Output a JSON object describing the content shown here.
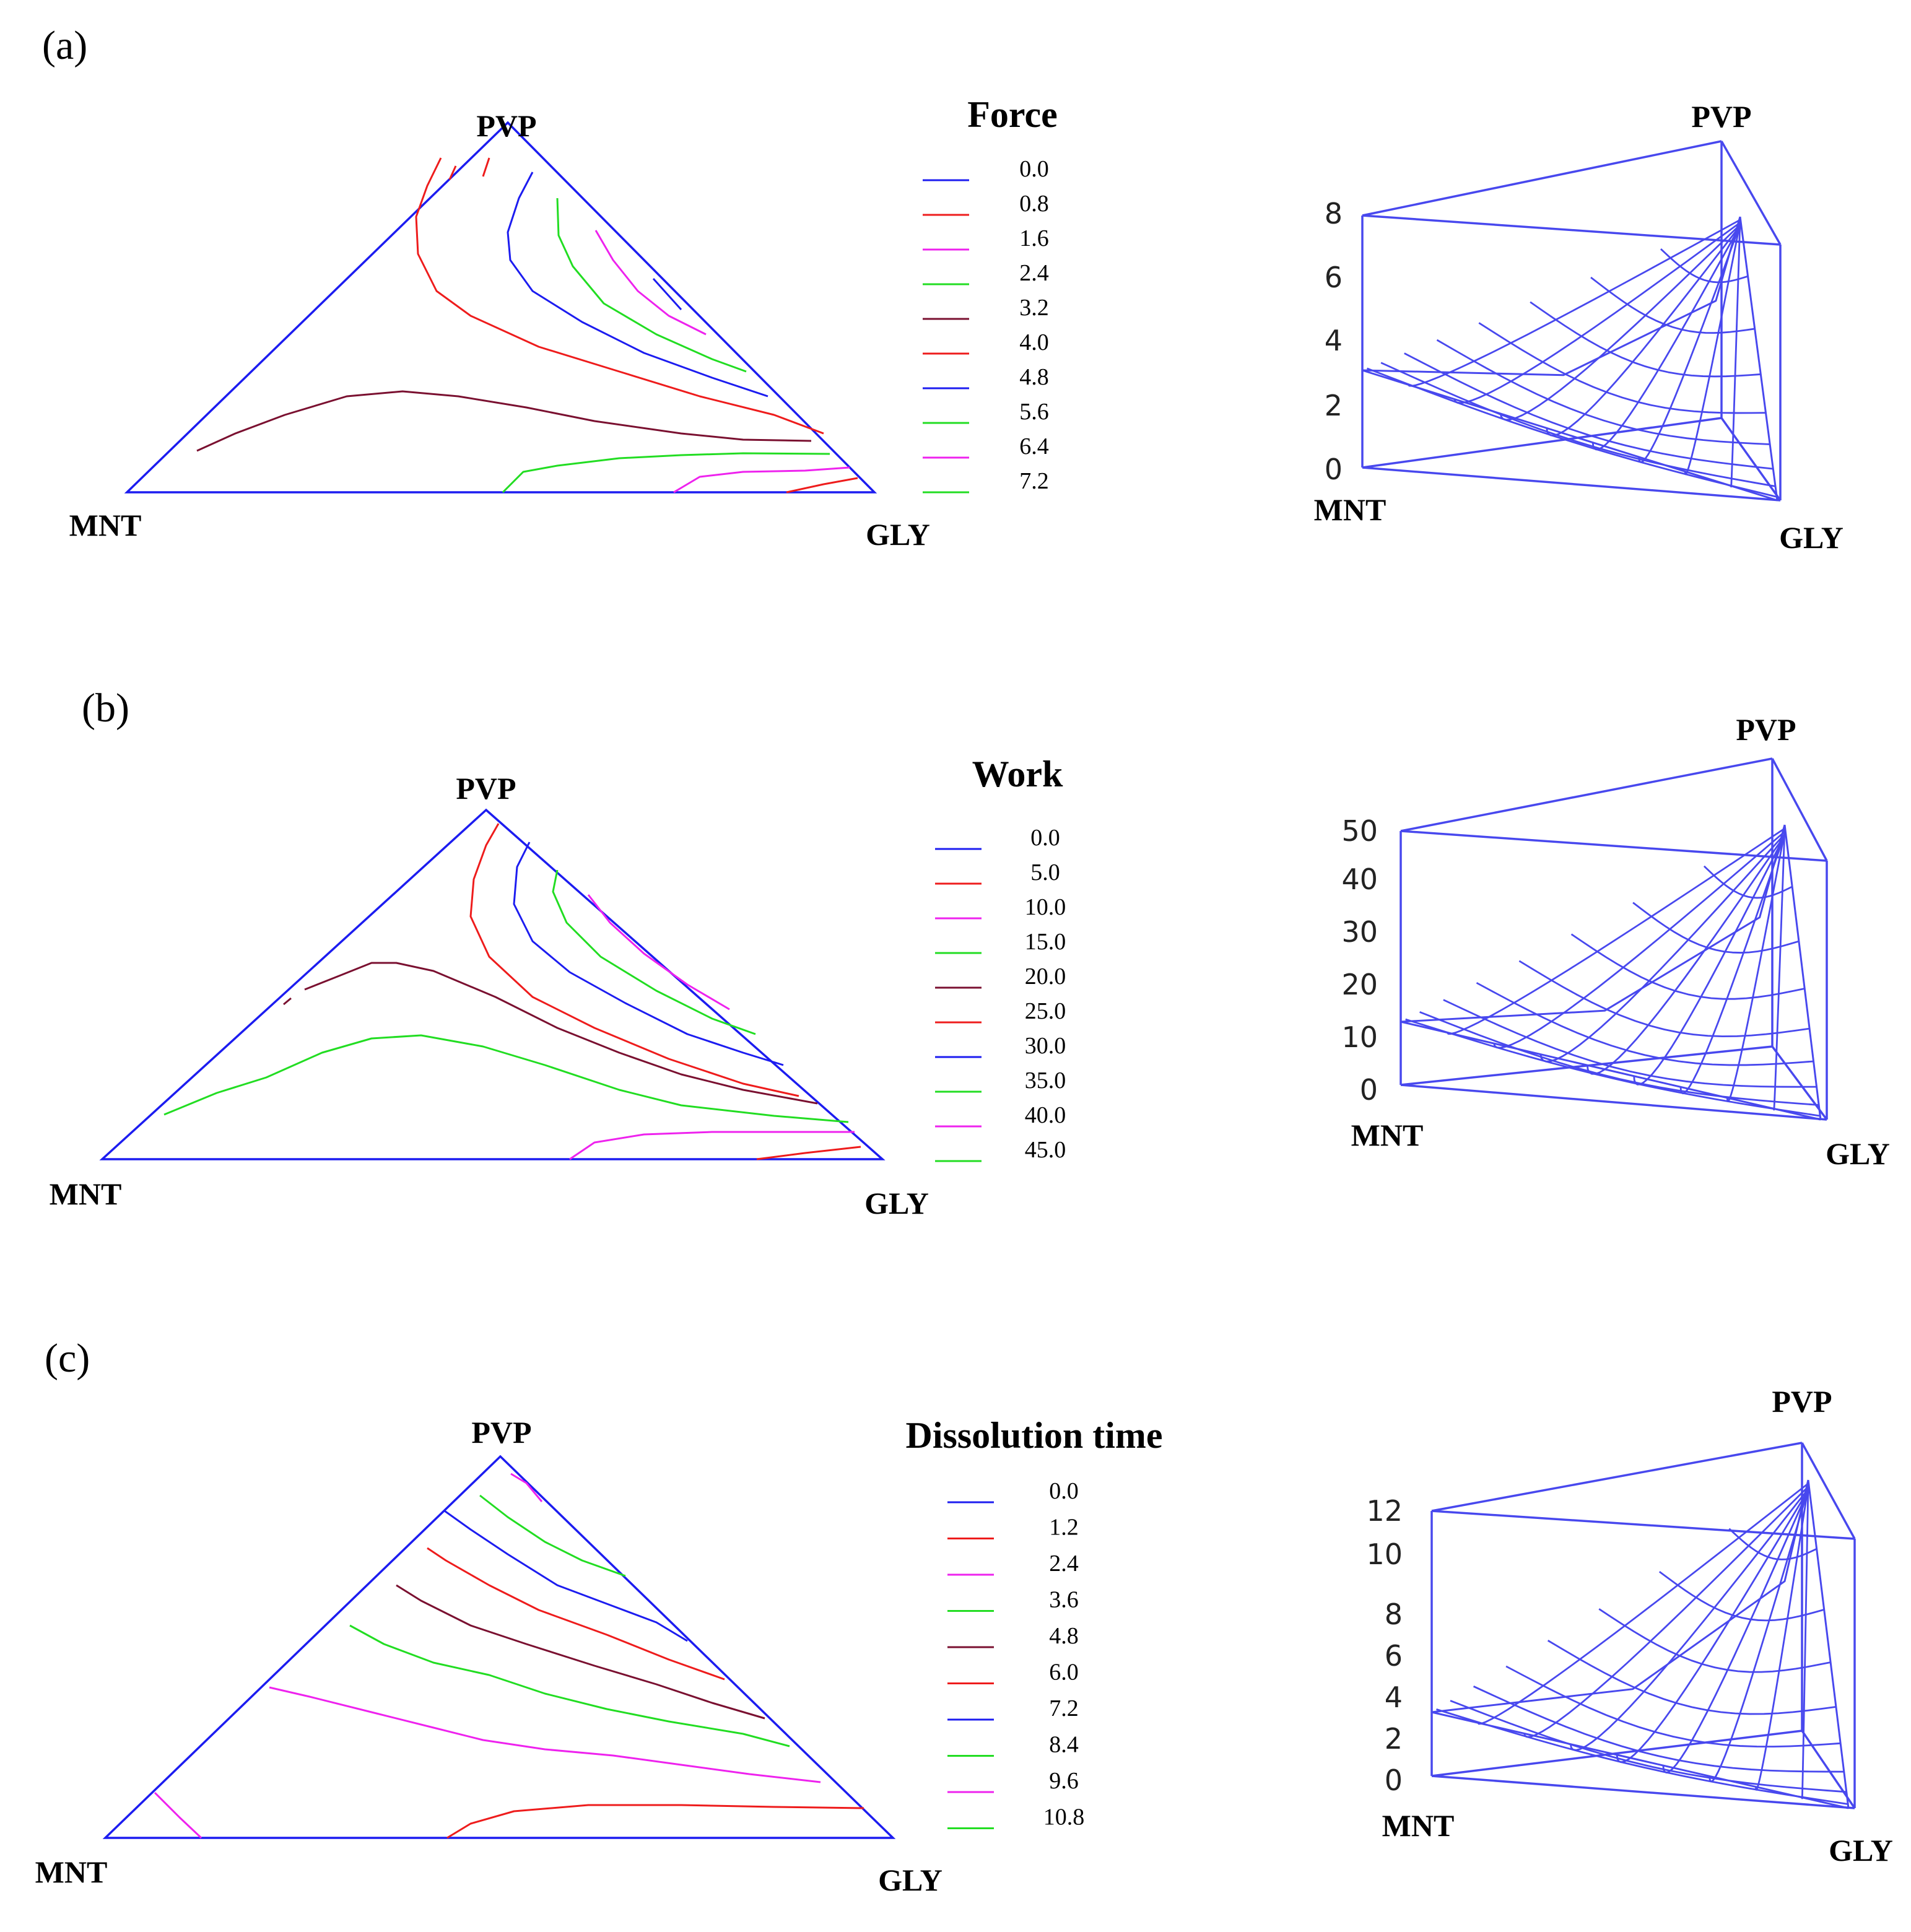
{
  "figure": {
    "panels": [
      {
        "label": "(a)",
        "legend_title": "Force",
        "vertices": {
          "top": "PVP",
          "left": "MNT",
          "right": "GLY"
        },
        "surface_axis_ticks": [
          "0",
          "2",
          "4",
          "6",
          "8"
        ]
      },
      {
        "label": "(b)",
        "legend_title": "Work",
        "vertices": {
          "top": "PVP",
          "left": "MNT",
          "right": "GLY"
        },
        "surface_axis_ticks": [
          "0",
          "10",
          "20",
          "30",
          "40",
          "50"
        ]
      },
      {
        "label": "(c)",
        "legend_title": "Dissolution time",
        "vertices": {
          "top": "PVP",
          "left": "MNT",
          "right": "GLY"
        },
        "surface_axis_ticks": [
          "0",
          "2",
          "4",
          "6",
          "8",
          "10",
          "12"
        ]
      }
    ]
  },
  "colors": {
    "blue": "#1c1cf0",
    "red": "#ee1c1c",
    "magenta": "#ee22ee",
    "green": "#22dd22",
    "maroon": "#7a1030",
    "mesh": "#4848ee"
  },
  "chart_data": [
    {
      "type": "contour",
      "subtype": "ternary_contour_and_3d_response_surface",
      "title": "Force",
      "components": [
        "PVP",
        "MNT",
        "GLY"
      ],
      "levels": [
        0.0,
        0.8,
        1.6,
        2.4,
        3.2,
        4.0,
        4.8,
        5.6,
        6.4,
        7.2
      ],
      "level_labels": [
        "0.0",
        "0.8",
        "1.6",
        "2.4",
        "3.2",
        "4.0",
        "4.8",
        "5.6",
        "6.4",
        "7.2"
      ],
      "level_colors": [
        "blue",
        "red",
        "magenta",
        "green",
        "maroon",
        "red",
        "blue",
        "green",
        "magenta",
        "green"
      ],
      "z_range": [
        0,
        8
      ]
    },
    {
      "type": "contour",
      "subtype": "ternary_contour_and_3d_response_surface",
      "title": "Work",
      "components": [
        "PVP",
        "MNT",
        "GLY"
      ],
      "levels": [
        0.0,
        5.0,
        10.0,
        15.0,
        20.0,
        25.0,
        30.0,
        35.0,
        40.0,
        45.0
      ],
      "level_labels": [
        "0.0",
        "5.0",
        "10.0",
        "15.0",
        "20.0",
        "25.0",
        "30.0",
        "35.0",
        "40.0",
        "45.0"
      ],
      "level_colors": [
        "blue",
        "red",
        "magenta",
        "green",
        "maroon",
        "red",
        "blue",
        "green",
        "magenta",
        "green"
      ],
      "z_range": [
        0,
        50
      ]
    },
    {
      "type": "contour",
      "subtype": "ternary_contour_and_3d_response_surface",
      "title": "Dissolution time",
      "components": [
        "PVP",
        "MNT",
        "GLY"
      ],
      "levels": [
        0.0,
        1.2,
        2.4,
        3.6,
        4.8,
        6.0,
        7.2,
        8.4,
        9.6,
        10.8
      ],
      "level_labels": [
        "0.0",
        "1.2",
        "2.4",
        "3.6",
        "4.8",
        "6.0",
        "7.2",
        "8.4",
        "9.6",
        "10.8"
      ],
      "level_colors": [
        "blue",
        "red",
        "magenta",
        "green",
        "maroon",
        "red",
        "blue",
        "green",
        "magenta",
        "green"
      ],
      "z_range": [
        0,
        12
      ]
    }
  ]
}
